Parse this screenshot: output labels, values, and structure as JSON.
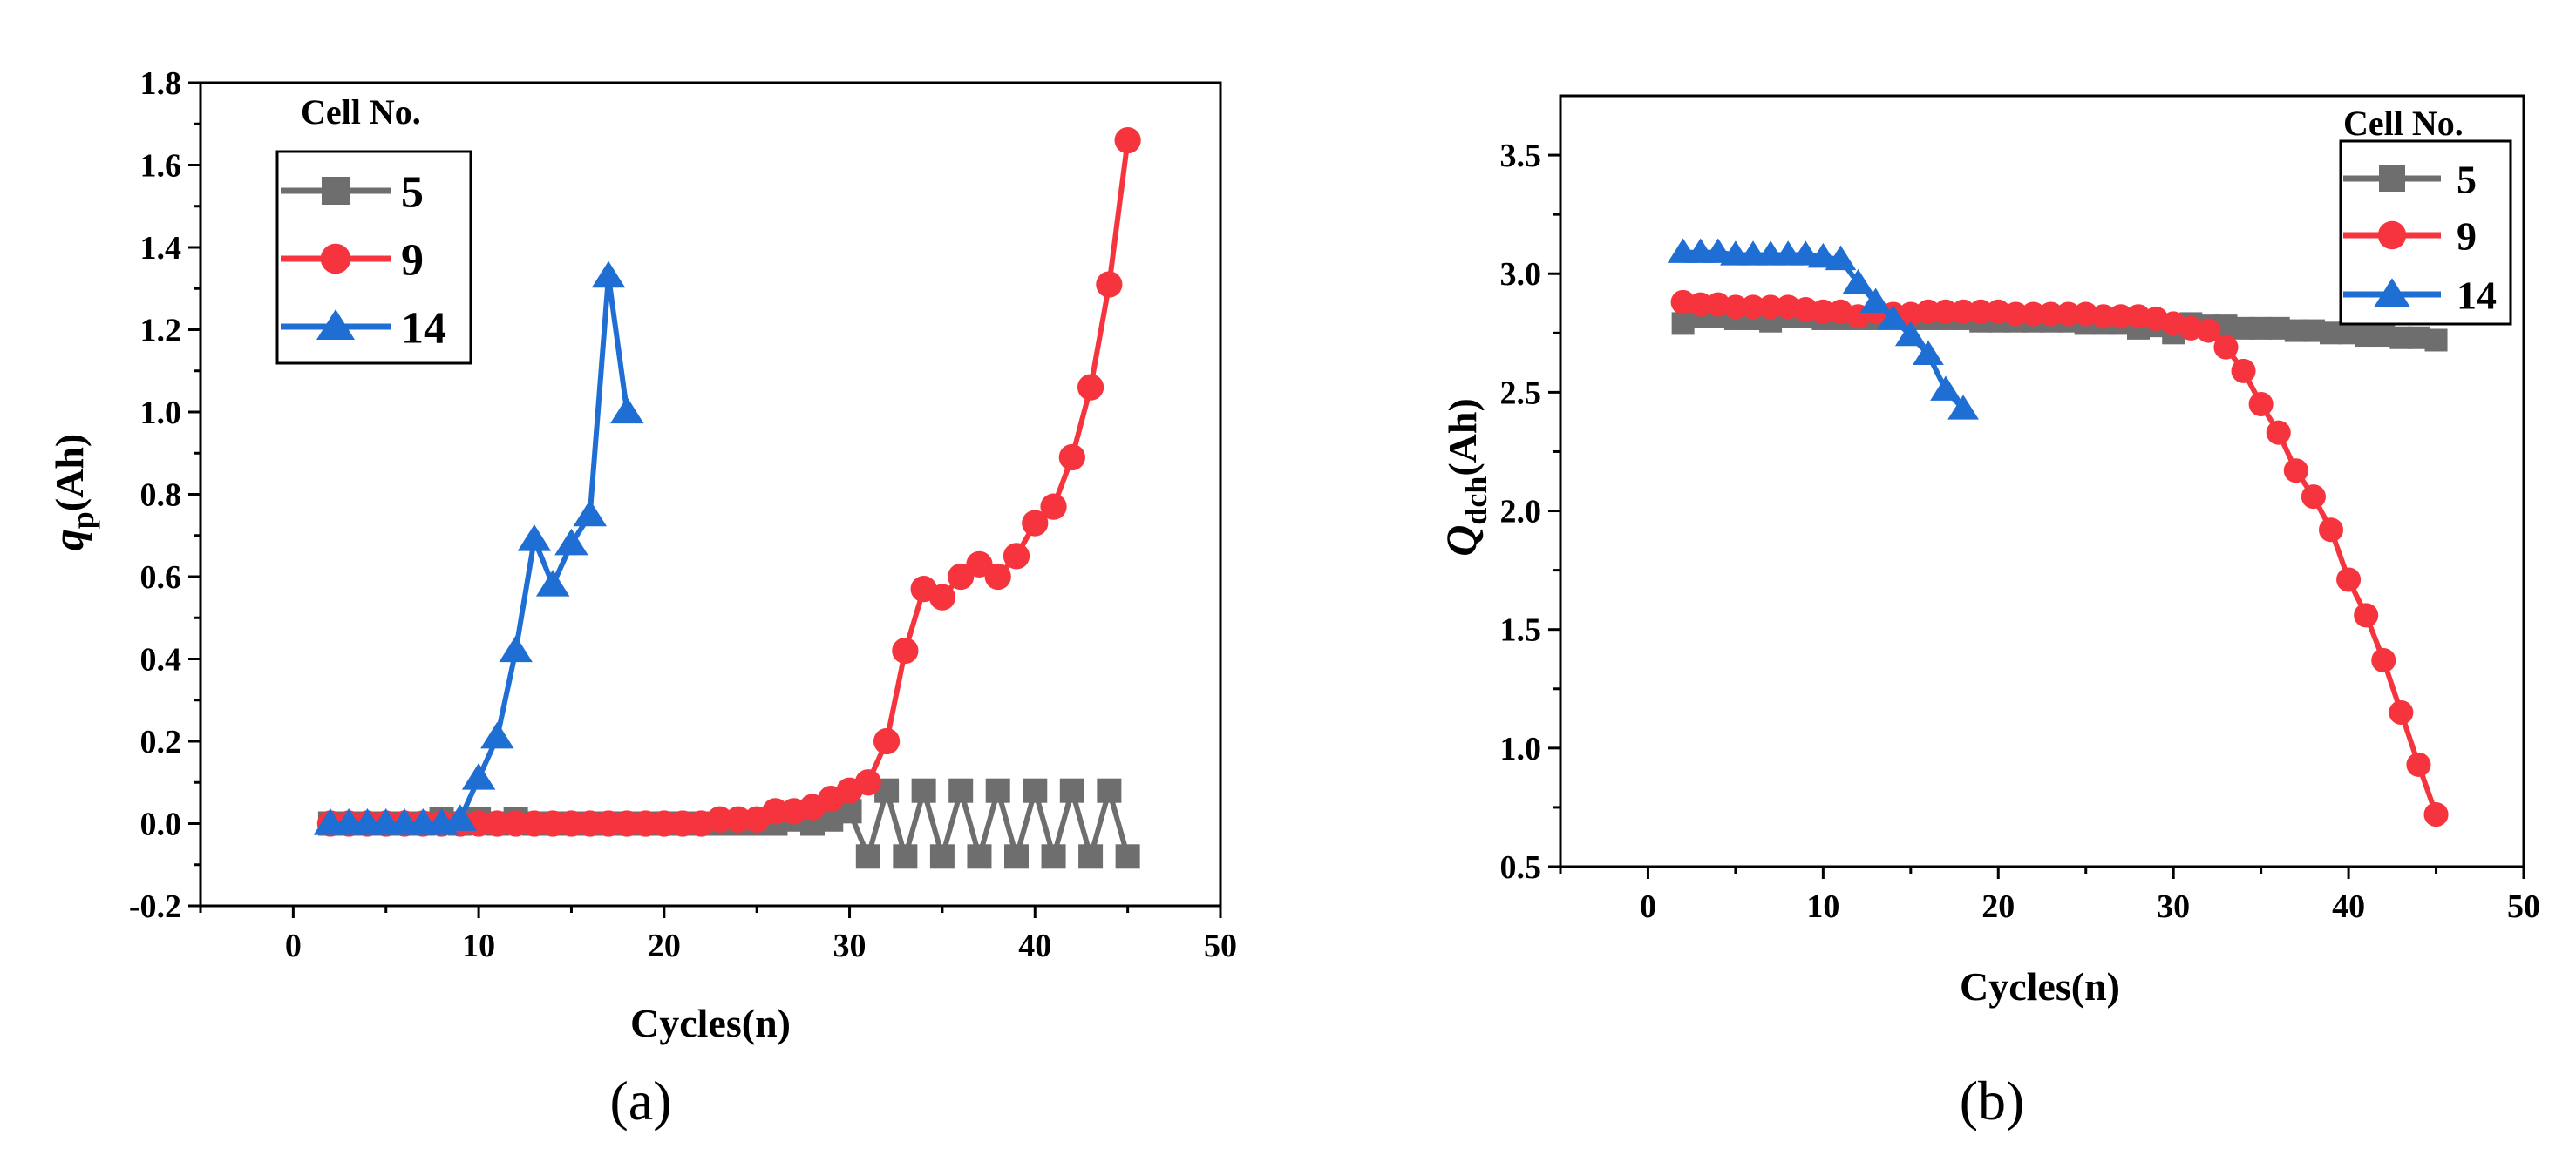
{
  "chart_data": [
    {
      "type": "line",
      "panel_label": "(a)",
      "xlabel": "Cycles(n)",
      "ylabel_main": "q",
      "ylabel_sub": "p",
      "ylabel_unit": "(Ah)",
      "xlim": [
        -5,
        50
      ],
      "ylim": [
        -0.2,
        1.8
      ],
      "xticks": [
        0,
        10,
        20,
        30,
        40,
        50
      ],
      "yticks": [
        -0.2,
        0.0,
        0.2,
        0.4,
        0.6,
        0.8,
        1.0,
        1.2,
        1.4,
        1.6,
        1.8
      ],
      "ytick_labels": [
        "-0.2",
        "0.0",
        "0.2",
        "0.4",
        "0.6",
        "0.8",
        "1.0",
        "1.2",
        "1.4",
        "1.6",
        "1.8"
      ],
      "legend": {
        "title": "Cell No.",
        "placement": "top-left"
      },
      "series": [
        {
          "name": "5",
          "color": "#6e6e6e",
          "marker": "square",
          "x": [
            2,
            3,
            4,
            5,
            6,
            7,
            8,
            9,
            10,
            11,
            12,
            13,
            14,
            15,
            16,
            17,
            18,
            19,
            20,
            21,
            22,
            23,
            24,
            25,
            26,
            27,
            28,
            29,
            30,
            31,
            32,
            33,
            34,
            35,
            36,
            37,
            38,
            39,
            40,
            41,
            42,
            43,
            44,
            45
          ],
          "y": [
            0.0,
            0.0,
            0.0,
            0.0,
            0.0,
            0.0,
            0.01,
            0.0,
            0.01,
            0.0,
            0.01,
            0.0,
            0.0,
            0.0,
            0.0,
            0.0,
            0.0,
            0.0,
            0.0,
            0.0,
            0.0,
            0.0,
            0.0,
            0.0,
            0.0,
            0.01,
            0.0,
            0.01,
            0.03,
            -0.08,
            0.08,
            -0.08,
            0.08,
            -0.08,
            0.08,
            -0.08,
            0.08,
            -0.08,
            0.08,
            -0.08,
            0.08,
            -0.08,
            0.08,
            -0.08
          ]
        },
        {
          "name": "9",
          "color": "#f5343e",
          "marker": "circle",
          "x": [
            2,
            3,
            4,
            5,
            6,
            7,
            8,
            9,
            10,
            11,
            12,
            13,
            14,
            15,
            16,
            17,
            18,
            19,
            20,
            21,
            22,
            23,
            24,
            25,
            26,
            27,
            28,
            29,
            30,
            31,
            32,
            33,
            34,
            35,
            36,
            37,
            38,
            39,
            40,
            41,
            42,
            43,
            44,
            45
          ],
          "y": [
            0.0,
            0.0,
            0.0,
            0.0,
            0.0,
            0.0,
            0.0,
            0.0,
            0.0,
            0.0,
            0.0,
            0.0,
            0.0,
            0.0,
            0.0,
            0.0,
            0.0,
            0.0,
            0.0,
            0.0,
            0.0,
            0.01,
            0.01,
            0.01,
            0.03,
            0.03,
            0.04,
            0.06,
            0.08,
            0.1,
            0.2,
            0.42,
            0.57,
            0.55,
            0.6,
            0.63,
            0.6,
            0.65,
            0.73,
            0.77,
            0.89,
            1.06,
            1.31,
            1.66
          ]
        },
        {
          "name": "14",
          "color": "#1f6ed4",
          "marker": "triangle",
          "x": [
            2,
            3,
            4,
            5,
            6,
            7,
            8,
            9,
            10,
            11,
            12,
            13,
            14,
            15,
            16,
            17,
            18
          ],
          "y": [
            0.0,
            0.0,
            0.0,
            0.0,
            0.0,
            0.0,
            0.0,
            0.01,
            0.11,
            0.21,
            0.42,
            0.69,
            0.58,
            0.68,
            0.75,
            1.33,
            1.0
          ]
        }
      ]
    },
    {
      "type": "line",
      "panel_label": "(b)",
      "xlabel": "Cycles(n)",
      "ylabel_main": "Q",
      "ylabel_sub": "dch",
      "ylabel_unit": "(Ah)",
      "xlim": [
        -5,
        50
      ],
      "ylim": [
        0.5,
        3.75
      ],
      "xticks": [
        0,
        10,
        20,
        30,
        40,
        50
      ],
      "yticks": [
        0.5,
        1.0,
        1.5,
        2.0,
        2.5,
        3.0,
        3.5
      ],
      "ytick_labels": [
        "0.5",
        "1.0",
        "1.5",
        "2.0",
        "2.5",
        "3.0",
        "3.5"
      ],
      "legend": {
        "title": "Cell No.",
        "placement": "top-right"
      },
      "series": [
        {
          "name": "5",
          "color": "#6e6e6e",
          "marker": "square",
          "x": [
            2,
            3,
            4,
            5,
            6,
            7,
            8,
            9,
            10,
            11,
            12,
            13,
            14,
            15,
            16,
            17,
            18,
            19,
            20,
            21,
            22,
            23,
            24,
            25,
            26,
            27,
            28,
            29,
            30,
            31,
            32,
            33,
            34,
            35,
            36,
            37,
            38,
            39,
            40,
            41,
            42,
            43,
            44,
            45
          ],
          "y": [
            2.79,
            2.82,
            2.82,
            2.81,
            2.81,
            2.8,
            2.82,
            2.82,
            2.81,
            2.81,
            2.81,
            2.81,
            2.81,
            2.81,
            2.81,
            2.81,
            2.81,
            2.8,
            2.8,
            2.8,
            2.8,
            2.8,
            2.8,
            2.79,
            2.79,
            2.79,
            2.77,
            2.78,
            2.75,
            2.79,
            2.78,
            2.78,
            2.77,
            2.77,
            2.77,
            2.76,
            2.76,
            2.75,
            2.75,
            2.74,
            2.74,
            2.73,
            2.73,
            2.72
          ]
        },
        {
          "name": "9",
          "color": "#f5343e",
          "marker": "circle",
          "x": [
            2,
            3,
            4,
            5,
            6,
            7,
            8,
            9,
            10,
            11,
            12,
            13,
            14,
            15,
            16,
            17,
            18,
            19,
            20,
            21,
            22,
            23,
            24,
            25,
            26,
            27,
            28,
            29,
            30,
            31,
            32,
            33,
            34,
            35,
            36,
            37,
            38,
            39,
            40,
            41,
            42,
            43,
            44,
            45
          ],
          "y": [
            2.88,
            2.87,
            2.87,
            2.86,
            2.86,
            2.86,
            2.86,
            2.85,
            2.84,
            2.84,
            2.82,
            2.84,
            2.83,
            2.83,
            2.84,
            2.84,
            2.84,
            2.84,
            2.84,
            2.83,
            2.83,
            2.83,
            2.83,
            2.83,
            2.82,
            2.82,
            2.82,
            2.81,
            2.79,
            2.77,
            2.76,
            2.69,
            2.59,
            2.45,
            2.33,
            2.17,
            2.06,
            1.92,
            1.71,
            1.56,
            1.37,
            1.15,
            0.93,
            0.72
          ]
        },
        {
          "name": "14",
          "color": "#1f6ed4",
          "marker": "triangle",
          "x": [
            2,
            3,
            4,
            5,
            6,
            7,
            8,
            9,
            10,
            11,
            12,
            13,
            14,
            15,
            16,
            17,
            18
          ],
          "y": [
            3.09,
            3.09,
            3.09,
            3.08,
            3.08,
            3.08,
            3.08,
            3.08,
            3.07,
            3.06,
            2.96,
            2.88,
            2.81,
            2.74,
            2.66,
            2.51,
            2.43
          ]
        }
      ]
    }
  ]
}
